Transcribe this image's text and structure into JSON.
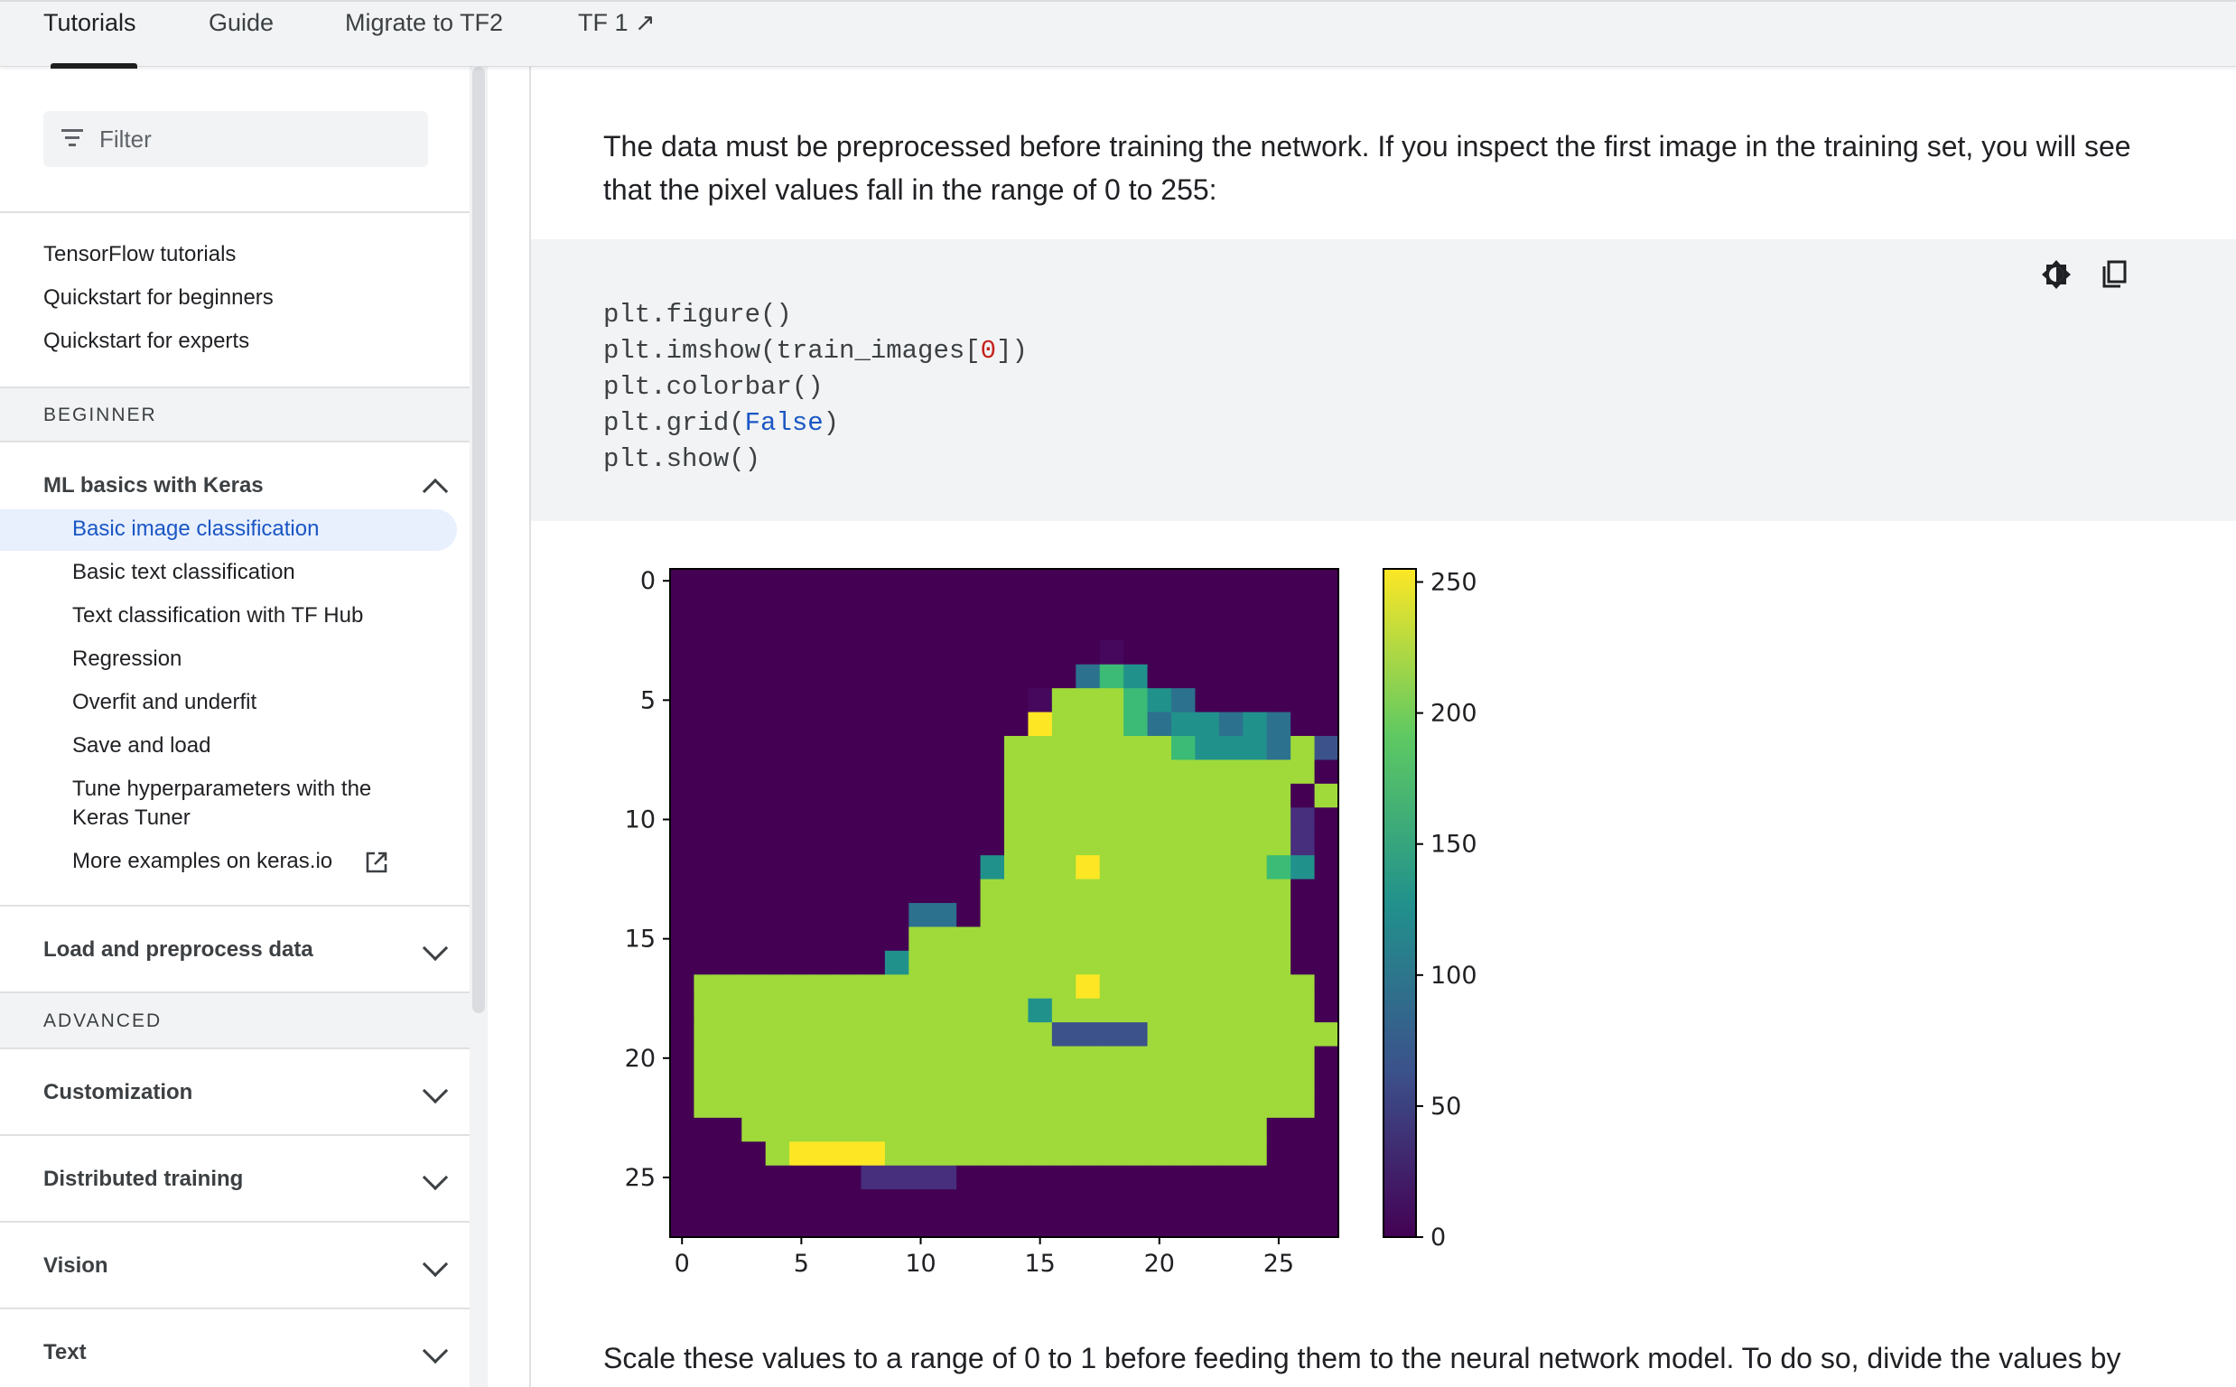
{
  "top_tabs": [
    {
      "label": "Tutorials"
    },
    {
      "label": "Guide"
    },
    {
      "label": "Migrate to TF2"
    },
    {
      "label": "TF 1 ↗"
    }
  ],
  "sidebar": {
    "filter_placeholder": "Filter",
    "top_links": [
      "TensorFlow tutorials",
      "Quickstart for beginners",
      "Quickstart for experts"
    ],
    "beginner_label": "BEGINNER",
    "ml_basics": {
      "title": "ML basics with Keras",
      "items": [
        "Basic image classification",
        "Basic text classification",
        "Text classification with TF Hub",
        "Regression",
        "Overfit and underfit",
        "Save and load",
        "Tune hyperparameters with the",
        "Keras Tuner",
        "More examples on keras.io"
      ]
    },
    "load_preprocess": "Load and preprocess data",
    "advanced_label": "ADVANCED",
    "groups": [
      "Customization",
      "Distributed training",
      "Vision",
      "Text"
    ]
  },
  "main": {
    "intro_line1": "The data must be preprocessed before training the network. If you inspect the first image in the training set, you will see",
    "intro_line2": "that the pixel values fall in the range of 0 to 255:",
    "code": {
      "line1": "plt.figure()",
      "line2_pre": "plt.imshow(train_images[",
      "line2_num": "0",
      "line2_post": "])",
      "line3": "plt.colorbar()",
      "line4_pre": "plt.grid(",
      "line4_kw": "False",
      "line4_post": ")",
      "line5": "plt.show()"
    },
    "outro": "Scale these values to a range of 0 to 1 before feeding them to the neural network model. To do so, divide the values by"
  },
  "chart_data": {
    "type": "heatmap",
    "x_ticks": [
      "0",
      "5",
      "10",
      "15",
      "20",
      "25"
    ],
    "y_ticks": [
      "0",
      "5",
      "10",
      "15",
      "20",
      "25"
    ],
    "colorbar_ticks": [
      "0",
      "50",
      "100",
      "150",
      "200",
      "250"
    ],
    "colorbar_range": [
      0,
      255
    ],
    "colormap": "viridis",
    "grid": false,
    "image_rows": [
      "............................",
      "............................",
      "............................",
      "..................1.........",
      ".................576........",
      "...............1888765......",
      "...............98887566565..",
      "..............88888887666584",
      "..............8888888888888.",
      "..............888888888888.8",
      "..............8888888888883.",
      "..............8888888888883.",
      ".............68889888888876.",
      ".............8888888888888..",
      "..........55.8888888888888..",
      "..........8888888888888888..",
      ".........68888888888888888..",
      ".88888888888888889888888888.",
      ".88888888888888688888888888.",
      ".888888888888888444488888888",
      ".88888888888888888888888888.",
      ".88888888888888888888888888.",
      ".88888888888888888888888888.",
      "...8888888888888888888888...",
      "....899998888888888888888...",
      "........3333................",
      "............................",
      "............................"
    ]
  }
}
